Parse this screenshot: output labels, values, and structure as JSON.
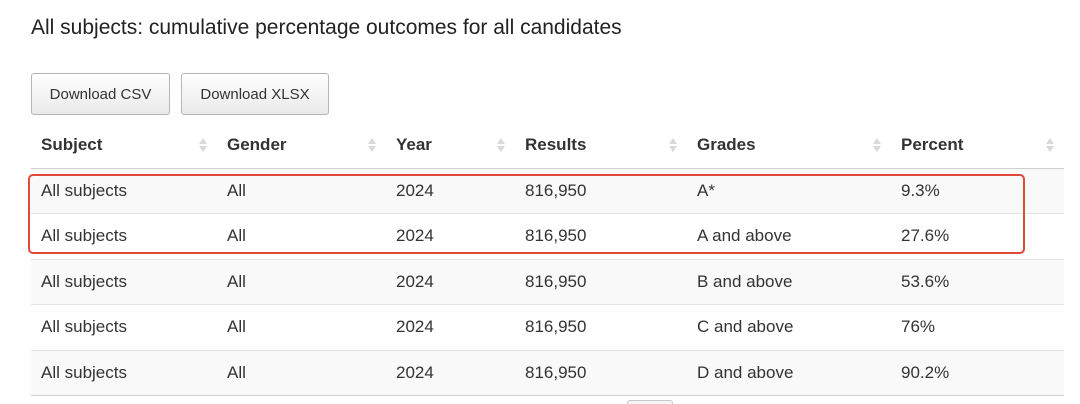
{
  "title": "All subjects: cumulative percentage outcomes for all candidates",
  "buttons": {
    "download_csv": "Download CSV",
    "download_xlsx": "Download XLSX"
  },
  "table": {
    "headers": [
      "Subject",
      "Gender",
      "Year",
      "Results",
      "Grades",
      "Percent"
    ],
    "rows": [
      [
        "All subjects",
        "All",
        "2024",
        "816,950",
        "A*",
        "9.3%"
      ],
      [
        "All subjects",
        "All",
        "2024",
        "816,950",
        "A and above",
        "27.6%"
      ],
      [
        "All subjects",
        "All",
        "2024",
        "816,950",
        "B and above",
        "53.6%"
      ],
      [
        "All subjects",
        "All",
        "2024",
        "816,950",
        "C and above",
        "76%"
      ],
      [
        "All subjects",
        "All",
        "2024",
        "816,950",
        "D and above",
        "90.2%"
      ]
    ],
    "highlighted_rows": [
      0,
      1
    ]
  },
  "colors": {
    "highlight_border": "#e0493a",
    "row_stripe": "#f9f9f9"
  }
}
